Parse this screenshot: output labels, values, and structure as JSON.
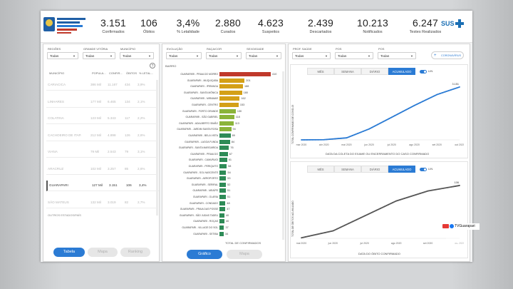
{
  "header": {
    "kpis": [
      {
        "value": "3.151",
        "label": "Confirmados"
      },
      {
        "value": "106",
        "label": "Óbitos"
      },
      {
        "value": "3,4%",
        "label": "% Letalidade"
      },
      {
        "value": "2.880",
        "label": "Curados"
      },
      {
        "value": "4.623",
        "label": "Suspeitos"
      },
      {
        "value": "2.439",
        "label": "Descartados"
      },
      {
        "value": "10.213",
        "label": "Notificados"
      },
      {
        "value": "6.247",
        "label": "Testes Realizados"
      }
    ],
    "sus_logo": "SUS"
  },
  "left_panel": {
    "filters": [
      {
        "label": "REGIÕES",
        "value": "Todas"
      },
      {
        "label": "GRANDE VITÓRIA",
        "value": "Todas"
      },
      {
        "label": "MUNICÍPIO",
        "value": "Todas"
      }
    ],
    "columns": [
      "MUNICÍPIO",
      "POPULA...",
      "CONFIR...",
      "ÓBITOS",
      "% LETAL..."
    ],
    "rows": [
      [
        "CARIACICA",
        "386 Mil",
        "11.167",
        "434",
        "3,9%"
      ],
      [
        "LINHARES",
        "177 Mil",
        "6.465",
        "134",
        "2,1%"
      ],
      [
        "COLATINA",
        "123 Mil",
        "5.343",
        "117",
        "2,2%"
      ],
      [
        "CACHOEIRO DE ITAP.",
        "212 Mil",
        "4.898",
        "126",
        "2,6%"
      ],
      [
        "VIANA",
        "79 Mil",
        "2.543",
        "79",
        "3,1%"
      ],
      [
        "ARACRUZ",
        "102 Mil",
        "3.257",
        "85",
        "2,6%"
      ],
      [
        "GUARAPARI",
        "127 Mil",
        "3.151",
        "106",
        "3,4%"
      ],
      [
        "SÃO MATEUS",
        "132 Mil",
        "3.019",
        "82",
        "2,7%"
      ]
    ],
    "selected_row": 6,
    "footer_note": "OUTROS ESTADOS/PAÍS",
    "buttons": [
      "Tabela",
      "Mapa",
      "Ranking"
    ]
  },
  "middle_panel": {
    "filters": [
      {
        "label": "EVOLUÇÃO",
        "value": "Todas"
      },
      {
        "label": "RAÇA/COR",
        "value": "Todas"
      },
      {
        "label": "SEXO/IDADE",
        "value": "Todas"
      }
    ],
    "chart_title": "BAIRRO",
    "axis_label": "TOTAL DE CONFIRMADOS",
    "buttons": [
      "Gráfico",
      "Mapa"
    ]
  },
  "right_panel": {
    "filters": [
      {
        "label": "PROF. SAÚDE",
        "value": "Todas"
      },
      {
        "label": "POS",
        "value": "Todas"
      },
      {
        "label": "POS",
        "value": "Todas"
      }
    ],
    "indicator_button": "CORONAVÍRUS",
    "top_tabs": [
      "MÊS",
      "SEMANA",
      "DIÁRIO",
      "ACUMULADO"
    ],
    "top_toggle": "LIN",
    "top_xlabel": "DATA DA COLETA DO EXAME OU ENCERRAMENTO DO CASO CONFIRMADO",
    "top_ylabel": "TOTAL CONFIRMADO DE COVID-19",
    "bottom_tabs": [
      "MÊS",
      "SEMANA",
      "DIÁRIO",
      "ACUMULADO"
    ],
    "bottom_toggle": "LIN",
    "bottom_xlabel": "DATA DO ÓBITO CONFIRMADO",
    "bottom_ylabel": "TOTAL DE ÓBITOS ACUMULADO"
  },
  "watermark": {
    "text": "TVGuarapari"
  },
  "colors": {
    "accent": "#2b7bd4",
    "bar_top": "#c0392b",
    "bar_high": "#d4a017",
    "bar_mid": "#8bb43a",
    "bar_low": "#2e8b57",
    "line_top": "#2b7bd4",
    "line_bottom": "#555555"
  },
  "chart_data": [
    {
      "type": "bar",
      "orientation": "horizontal",
      "title": "BAIRRO",
      "xlabel": "TOTAL DE CONFIRMADOS",
      "categories": [
        "GUARAPARI - PRAIA DO MORRO",
        "GUARAPARI - MUQUIÇABA",
        "GUARAPARI - IPIRANGA",
        "GUARAPARI - SANTA MÔNICA",
        "GUARAPARI - MIRAMAR",
        "GUARAPARI - CENTRO",
        "GUARAPARI - PORTO GRANDE",
        "GUARAPARI - SÃO GABRIEL",
        "GUARAPARI - ADALBERTO SIMÃO",
        "GUARAPARI - JARDIM SANTA ROSA",
        "GUARAPARI - BELA VISTA",
        "GUARAPARI - LAGOA FUNDA",
        "GUARAPARI - SANTA MARGARIDA",
        "GUARAPARI - PRAIA DO",
        "GUARAPARI - CAMURUGI",
        "GUARAPARI - PERIQUITO",
        "GUARAPARI - SOL NASCENTE",
        "GUARAPARI - AEROPORTO",
        "GUARAPARI - SERIRAL",
        "GUARAPARI - MEAÍPE",
        "GUARAPARI - OLARIA",
        "GUARAPARI - CONDADO",
        "GUARAPARI - PRAIA DAS POSSE",
        "GUARAPARI - SÃO JUDAS TADEU",
        "GUARAPARI - ROÇAS",
        "GUARAPARI - VILLAGE DO SOL",
        "GUARAPARI - SETIBA"
      ],
      "values": [
        410,
        201,
        188,
        180,
        162,
        153,
        130,
        118,
        113,
        94,
        89,
        84,
        76,
        67,
        61,
        58,
        54,
        53,
        52,
        51,
        51,
        48,
        47,
        40,
        40,
        37,
        34
      ]
    },
    {
      "type": "line",
      "title": "",
      "xlabel": "DATA DA COLETA DO EXAME OU ENCERRAMENTO DO CASO CONFIRMADO",
      "ylabel": "TOTAL CONFIRMADO DE COVID-19",
      "x": [
        "mar 2020",
        "abr 2020",
        "mai 2020",
        "jun 2020",
        "jul 2020",
        "ago 2020",
        "set 2020",
        "out 2020"
      ],
      "series": [
        {
          "values": [
            0,
            10,
            120,
            650,
            1350,
            2050,
            2700,
            3151
          ]
        }
      ],
      "end_label": "3.151"
    },
    {
      "type": "line",
      "title": "",
      "xlabel": "DATA DO ÓBITO CONFIRMADO",
      "ylabel": "TOTAL DE ÓBITOS ACUMULADO",
      "x": [
        "mai 2020",
        "jun 2020",
        "jul 2020",
        "ago 2020",
        "set 2020",
        "out 2020"
      ],
      "series": [
        {
          "values": [
            1,
            15,
            45,
            75,
            95,
            106
          ]
        }
      ],
      "end_label": "106"
    }
  ]
}
